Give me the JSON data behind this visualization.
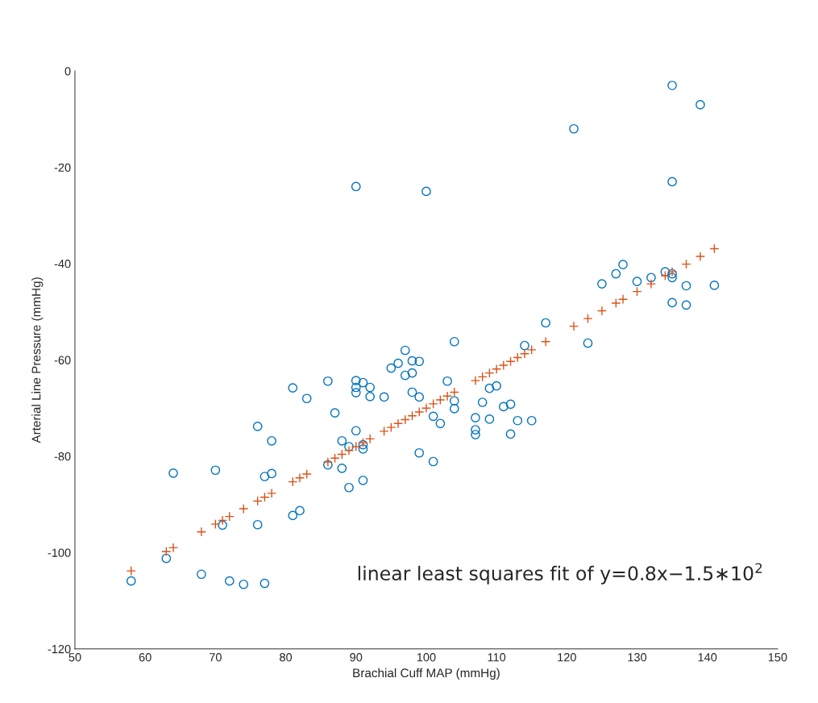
{
  "chart_data": {
    "type": "scatter",
    "xlabel": "Brachial Cuff MAP (mmHg)",
    "ylabel": "Arterial Line Pressure (mmHg)",
    "xlim": [
      50,
      150
    ],
    "xticks": [
      50,
      60,
      70,
      80,
      90,
      100,
      110,
      120,
      130,
      140,
      150
    ],
    "ylim": [
      -120,
      0
    ],
    "yticks": [
      -120,
      -100,
      -80,
      -60,
      -40,
      -20,
      0
    ],
    "grid": false,
    "annotations": [
      "linear least squares fit of y=0.8x−1.5∗10$^{2}$"
    ],
    "series": [
      {
        "color": "#0072bd",
        "marker": "circle",
        "x": [
          135,
          139,
          121,
          90,
          100,
          135,
          128,
          127,
          125,
          130,
          132,
          134,
          135,
          135,
          137,
          141,
          135,
          137,
          117,
          123,
          81,
          83,
          76,
          78,
          64,
          70,
          77,
          78,
          81,
          82,
          76,
          71,
          63,
          58,
          68,
          72,
          74,
          77,
          86,
          87,
          90,
          91,
          90,
          90,
          92,
          92,
          94,
          95,
          96,
          97,
          98,
          99,
          97,
          98,
          98,
          99,
          104,
          103,
          104,
          104,
          101,
          102,
          99,
          101,
          107,
          107,
          107,
          108,
          109,
          110,
          109,
          111,
          112,
          113,
          115,
          112,
          114,
          90,
          88,
          89,
          91,
          91,
          86,
          88,
          91,
          89
        ],
        "values": [
          -3,
          -7,
          -12,
          -24,
          -25,
          -23,
          -40.2,
          -42.1,
          -44.2,
          -43.7,
          -42.9,
          -41.7,
          -42.1,
          -42.9,
          -44.6,
          -44.5,
          -48.1,
          -48.6,
          -52.3,
          -56.5,
          -65.8,
          -68.0,
          -73.8,
          -76.8,
          -83.5,
          -82.9,
          -84.2,
          -83.6,
          -92.3,
          -91.3,
          -94.2,
          -94.3,
          -101.2,
          -105.9,
          -104.5,
          -105.9,
          -106.6,
          -106.4,
          -64.4,
          -71.0,
          -64.3,
          -64.7,
          -65.7,
          -66.8,
          -65.7,
          -67.6,
          -67.7,
          -61.7,
          -60.7,
          -58.0,
          -60.2,
          -60.3,
          -63.2,
          -62.7,
          -66.7,
          -67.7,
          -56.2,
          -64.4,
          -68.5,
          -70.1,
          -71.7,
          -73.2,
          -79.3,
          -81.1,
          -72.0,
          -74.5,
          -75.5,
          -68.8,
          -65.9,
          -65.4,
          -72.3,
          -69.7,
          -69.2,
          -72.6,
          -72.6,
          -75.4,
          -57.0,
          -74.7,
          -76.8,
          -78.0,
          -77.6,
          -78.5,
          -81.8,
          -82.5,
          -85.0,
          -86.5
        ]
      },
      {
        "color": "#d95319",
        "marker": "cross",
        "x": [
          58,
          63,
          64,
          68,
          70,
          71,
          72,
          74,
          76,
          77,
          78,
          81,
          82,
          83,
          86,
          87,
          88,
          89,
          90,
          91,
          92,
          94,
          95,
          96,
          97,
          98,
          99,
          100,
          101,
          102,
          103,
          104,
          107,
          108,
          109,
          110,
          111,
          112,
          113,
          114,
          115,
          117,
          121,
          123,
          125,
          127,
          128,
          130,
          132,
          134,
          135,
          137,
          139,
          141
        ],
        "values": [
          -103.8,
          -99.8,
          -99.0,
          -95.7,
          -94.1,
          -93.3,
          -92.5,
          -90.9,
          -89.3,
          -88.5,
          -87.7,
          -85.3,
          -84.5,
          -83.7,
          -81.2,
          -80.4,
          -79.6,
          -78.8,
          -78.0,
          -77.2,
          -76.4,
          -74.8,
          -74.0,
          -73.2,
          -72.4,
          -71.6,
          -70.8,
          -70.0,
          -69.1,
          -68.3,
          -67.5,
          -66.7,
          -64.3,
          -63.5,
          -62.7,
          -61.9,
          -61.1,
          -60.3,
          -59.5,
          -58.7,
          -57.9,
          -56.2,
          -53.0,
          -51.4,
          -49.8,
          -48.2,
          -47.4,
          -45.8,
          -44.2,
          -42.5,
          -41.7,
          -40.1,
          -38.5,
          -36.9
        ]
      }
    ]
  }
}
